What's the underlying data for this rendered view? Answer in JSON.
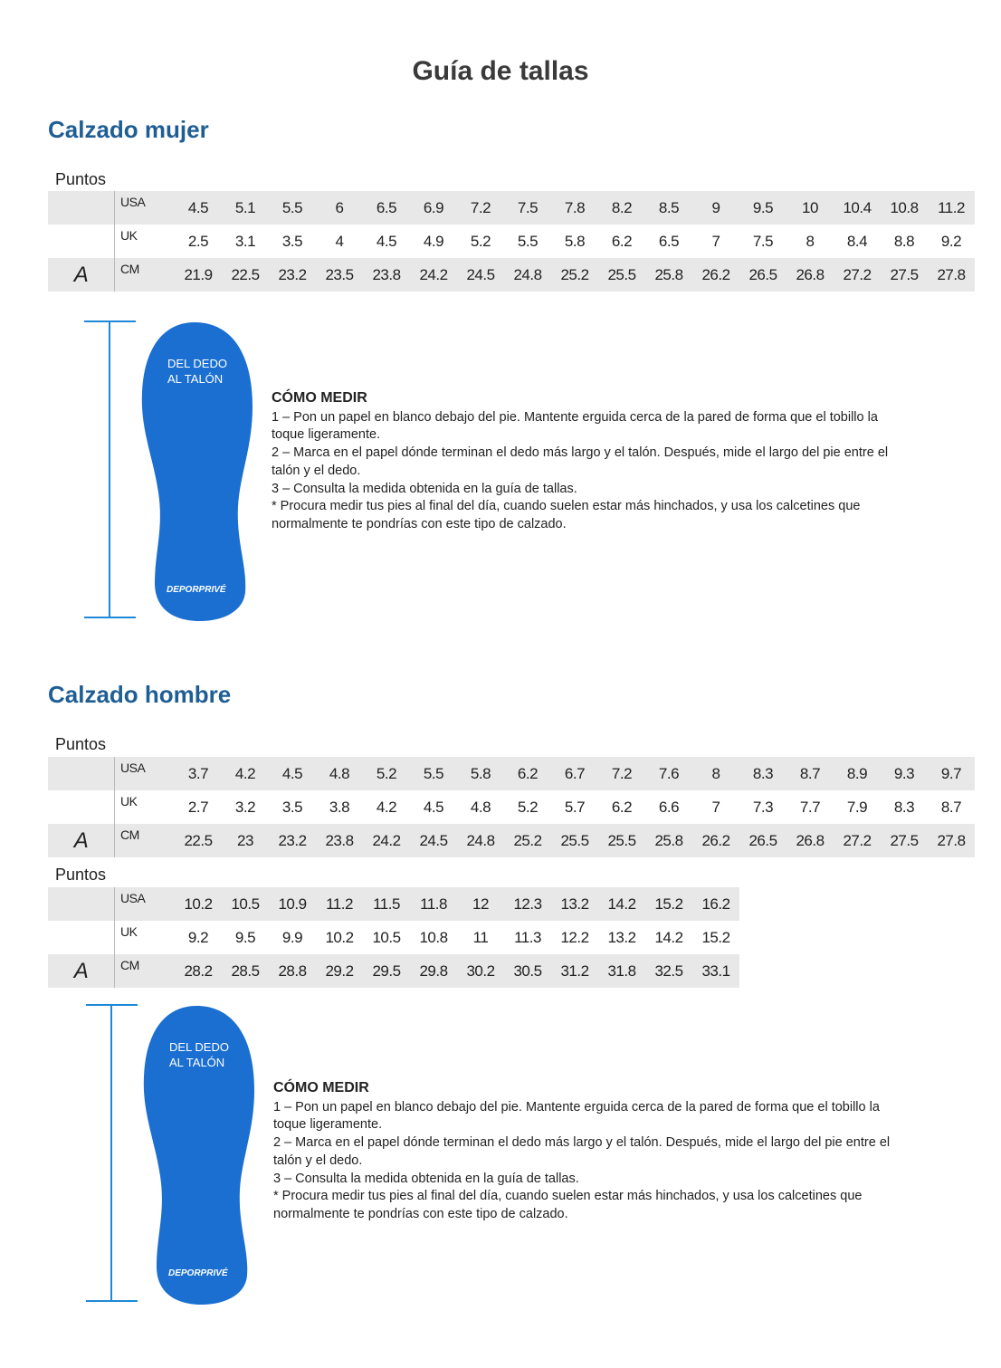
{
  "title": "Guía de tallas",
  "colors": {
    "heading": "#1f5e94",
    "sole": "#1a6fd1",
    "ruler": "#1e88d8",
    "row_shade": "#e8e8e8"
  },
  "women": {
    "heading": "Calzado mujer",
    "tables": [
      {
        "caption": "Puntos",
        "letter": "A",
        "rows": [
          {
            "label": "USA",
            "values": [
              "4.5",
              "5.1",
              "5.5",
              "6",
              "6.5",
              "6.9",
              "7.2",
              "7.5",
              "7.8",
              "8.2",
              "8.5",
              "9",
              "9.5",
              "10",
              "10.4",
              "10.8",
              "11.2"
            ]
          },
          {
            "label": "UK",
            "values": [
              "2.5",
              "3.1",
              "3.5",
              "4",
              "4.5",
              "4.9",
              "5.2",
              "5.5",
              "5.8",
              "6.2",
              "6.5",
              "7",
              "7.5",
              "8",
              "8.4",
              "8.8",
              "9.2"
            ]
          },
          {
            "label": "CM",
            "values": [
              "21.9",
              "22.5",
              "23.2",
              "23.5",
              "23.8",
              "24.2",
              "24.5",
              "24.8",
              "25.2",
              "25.5",
              "25.8",
              "26.2",
              "26.5",
              "26.8",
              "27.2",
              "27.5",
              "27.8"
            ]
          }
        ]
      }
    ],
    "foot": {
      "label_line1": "DEL DEDO",
      "label_line2": "AL TALÓN",
      "brand": "DEPORPRIVÉ"
    },
    "how": {
      "heading": "CÓMO MEDIR",
      "steps": [
        "1 – Pon un papel en blanco debajo del pie. Mantente erguida cerca de la pared de forma que el tobillo la toque ligeramente.",
        "2 – Marca en el papel dónde terminan el dedo más largo y el talón. Después, mide el largo del pie entre el talón y el dedo.",
        "3 – Consulta la medida obtenida en la guía de tallas.",
        "* Procura medir tus pies al final del día, cuando suelen estar más hinchados, y usa los calcetines que normalmente te pondrías con este tipo de calzado."
      ]
    }
  },
  "men": {
    "heading": "Calzado hombre",
    "tables": [
      {
        "caption": "Puntos",
        "letter": "A",
        "rows": [
          {
            "label": "USA",
            "values": [
              "3.7",
              "4.2",
              "4.5",
              "4.8",
              "5.2",
              "5.5",
              "5.8",
              "6.2",
              "6.7",
              "7.2",
              "7.6",
              "8",
              "8.3",
              "8.7",
              "8.9",
              "9.3",
              "9.7"
            ]
          },
          {
            "label": "UK",
            "values": [
              "2.7",
              "3.2",
              "3.5",
              "3.8",
              "4.2",
              "4.5",
              "4.8",
              "5.2",
              "5.7",
              "6.2",
              "6.6",
              "7",
              "7.3",
              "7.7",
              "7.9",
              "8.3",
              "8.7"
            ]
          },
          {
            "label": "CM",
            "values": [
              "22.5",
              "23",
              "23.2",
              "23.8",
              "24.2",
              "24.5",
              "24.8",
              "25.2",
              "25.5",
              "25.5",
              "25.8",
              "26.2",
              "26.5",
              "26.8",
              "27.2",
              "27.5",
              "27.8"
            ]
          }
        ]
      },
      {
        "caption": "Puntos",
        "letter": "A",
        "rows": [
          {
            "label": "USA",
            "values": [
              "10.2",
              "10.5",
              "10.9",
              "11.2",
              "11.5",
              "11.8",
              "12",
              "12.3",
              "13.2",
              "14.2",
              "15.2",
              "16.2"
            ]
          },
          {
            "label": "UK",
            "values": [
              "9.2",
              "9.5",
              "9.9",
              "10.2",
              "10.5",
              "10.8",
              "11",
              "11.3",
              "12.2",
              "13.2",
              "14.2",
              "15.2"
            ]
          },
          {
            "label": "CM",
            "values": [
              "28.2",
              "28.5",
              "28.8",
              "29.2",
              "29.5",
              "29.8",
              "30.2",
              "30.5",
              "31.2",
              "31.8",
              "32.5",
              "33.1"
            ]
          }
        ]
      }
    ],
    "foot": {
      "label_line1": "DEL DEDO",
      "label_line2": "AL TALÓN",
      "brand": "DEPORPRIVÉ"
    },
    "how": {
      "heading": "CÓMO MEDIR",
      "steps": [
        "1 – Pon un papel en blanco debajo del pie. Mantente erguida cerca de la pared de forma que el tobillo la toque ligeramente.",
        "2 – Marca en el papel dónde terminan el dedo más largo y el talón. Después, mide el largo del pie entre el talón y el dedo.",
        "3 – Consulta la medida obtenida en la guía de tallas.",
        "* Procura medir tus pies al final del día, cuando suelen estar más hinchados, y usa los calcetines que normalmente te pondrías con este tipo de calzado."
      ]
    }
  }
}
